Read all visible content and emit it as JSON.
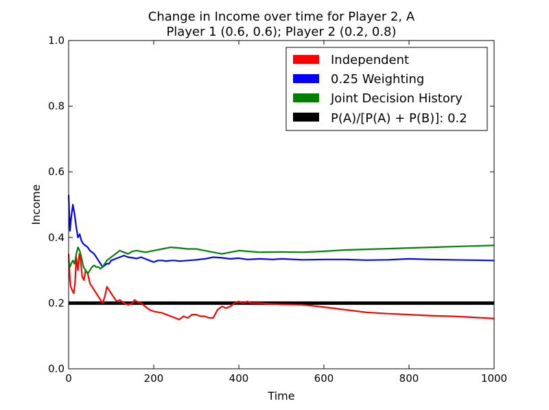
{
  "chart_data": {
    "type": "line",
    "title": "Change in Income over time for Player 2, A",
    "subtitle": "Player 1 (0.6, 0.6); Player 2 (0.2, 0.8)",
    "xlabel": "Time",
    "ylabel": "Income",
    "xlim": [
      0,
      1000
    ],
    "ylim": [
      0.0,
      1.0
    ],
    "xticks": [
      "0",
      "200",
      "400",
      "600",
      "800",
      "1000"
    ],
    "yticks": [
      "0.0",
      "0.2",
      "0.4",
      "0.6",
      "0.8",
      "1.0"
    ],
    "grid": false,
    "legend_position": "top-right",
    "series": [
      {
        "name": "Independent",
        "color": "#ff0000",
        "x": [
          0,
          3,
          5,
          8,
          12,
          15,
          18,
          22,
          25,
          28,
          32,
          36,
          40,
          45,
          50,
          55,
          60,
          65,
          70,
          75,
          80,
          85,
          90,
          95,
          100,
          105,
          110,
          115,
          120,
          130,
          140,
          150,
          155,
          160,
          170,
          180,
          190,
          200,
          220,
          240,
          250,
          260,
          270,
          280,
          290,
          300,
          310,
          320,
          330,
          340,
          350,
          360,
          370,
          380,
          390,
          400,
          410,
          420,
          430,
          450,
          470,
          500,
          550,
          600,
          650,
          700,
          750,
          800,
          850,
          900,
          950,
          1000
        ],
        "y": [
          0.35,
          0.27,
          0.25,
          0.24,
          0.23,
          0.26,
          0.34,
          0.3,
          0.35,
          0.33,
          0.28,
          0.27,
          0.3,
          0.29,
          0.26,
          0.25,
          0.24,
          0.23,
          0.22,
          0.21,
          0.2,
          0.22,
          0.25,
          0.24,
          0.23,
          0.22,
          0.21,
          0.205,
          0.21,
          0.2,
          0.195,
          0.2,
          0.21,
          0.205,
          0.2,
          0.19,
          0.18,
          0.175,
          0.17,
          0.16,
          0.155,
          0.15,
          0.16,
          0.155,
          0.165,
          0.165,
          0.16,
          0.16,
          0.155,
          0.155,
          0.18,
          0.19,
          0.185,
          0.19,
          0.2,
          0.205,
          0.2,
          0.205,
          0.2,
          0.2,
          0.198,
          0.196,
          0.195,
          0.188,
          0.18,
          0.172,
          0.168,
          0.165,
          0.162,
          0.16,
          0.157,
          0.153
        ]
      },
      {
        "name": "0.25 Weighting",
        "color": "#0000ff",
        "x": [
          0,
          3,
          6,
          10,
          14,
          18,
          22,
          26,
          30,
          35,
          40,
          45,
          50,
          55,
          60,
          65,
          70,
          75,
          80,
          85,
          90,
          95,
          100,
          110,
          120,
          130,
          140,
          150,
          160,
          170,
          180,
          190,
          200,
          210,
          220,
          230,
          240,
          250,
          260,
          280,
          300,
          320,
          340,
          360,
          380,
          400,
          420,
          450,
          480,
          500,
          550,
          600,
          650,
          700,
          750,
          800,
          850,
          900,
          950,
          1000
        ],
        "y": [
          0.53,
          0.42,
          0.46,
          0.5,
          0.47,
          0.43,
          0.4,
          0.41,
          0.39,
          0.38,
          0.375,
          0.37,
          0.36,
          0.355,
          0.35,
          0.34,
          0.33,
          0.32,
          0.31,
          0.315,
          0.32,
          0.32,
          0.33,
          0.335,
          0.34,
          0.345,
          0.34,
          0.338,
          0.336,
          0.34,
          0.335,
          0.33,
          0.325,
          0.33,
          0.33,
          0.328,
          0.33,
          0.33,
          0.328,
          0.33,
          0.332,
          0.335,
          0.34,
          0.338,
          0.335,
          0.337,
          0.333,
          0.335,
          0.333,
          0.335,
          0.332,
          0.333,
          0.333,
          0.331,
          0.332,
          0.335,
          0.333,
          0.332,
          0.331,
          0.33
        ]
      },
      {
        "name": "Joint Decision History",
        "color": "#008000",
        "x": [
          0,
          3,
          6,
          10,
          14,
          18,
          22,
          26,
          30,
          35,
          40,
          45,
          50,
          55,
          60,
          65,
          70,
          75,
          80,
          85,
          90,
          95,
          100,
          110,
          120,
          130,
          140,
          150,
          160,
          180,
          200,
          220,
          240,
          260,
          280,
          300,
          320,
          340,
          360,
          380,
          400,
          420,
          450,
          500,
          550,
          600,
          650,
          700,
          750,
          800,
          850,
          900,
          950,
          1000
        ],
        "y": [
          0.33,
          0.31,
          0.32,
          0.33,
          0.32,
          0.35,
          0.37,
          0.36,
          0.34,
          0.31,
          0.3,
          0.29,
          0.3,
          0.31,
          0.315,
          0.31,
          0.31,
          0.305,
          0.31,
          0.32,
          0.33,
          0.335,
          0.34,
          0.35,
          0.36,
          0.355,
          0.35,
          0.358,
          0.36,
          0.355,
          0.36,
          0.365,
          0.37,
          0.368,
          0.365,
          0.365,
          0.36,
          0.355,
          0.35,
          0.355,
          0.36,
          0.358,
          0.355,
          0.356,
          0.355,
          0.358,
          0.362,
          0.364,
          0.366,
          0.368,
          0.37,
          0.372,
          0.374,
          0.376
        ]
      },
      {
        "name": "P(A)/[P(A) + P(B)]: 0.2",
        "color": "#000000",
        "x": [
          0,
          1000
        ],
        "y": [
          0.2,
          0.2
        ]
      }
    ]
  }
}
